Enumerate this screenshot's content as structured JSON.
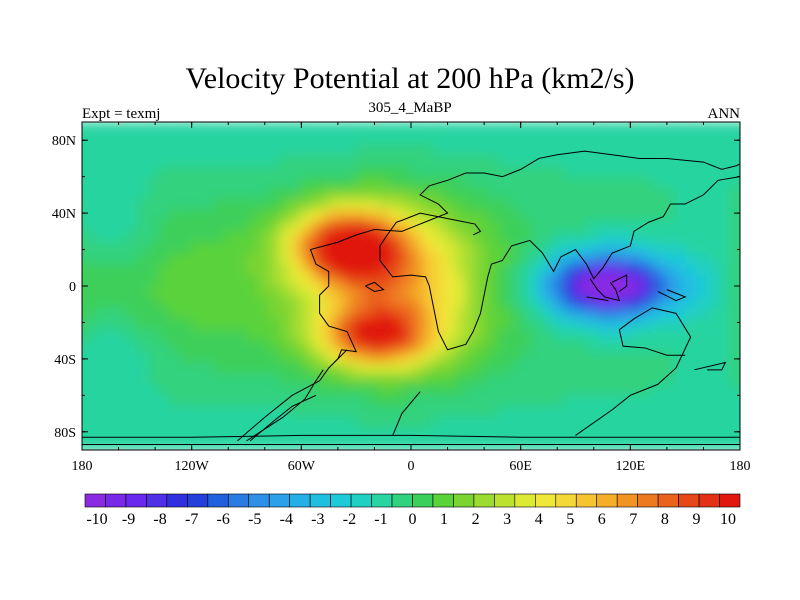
{
  "chart_data": {
    "type": "heatmap",
    "title": "Velocity Potential at 200 hPa (km2/s)",
    "subtitle": "305_4_MaBP",
    "left_string": "Expt = texmj",
    "right_string": "ANN",
    "xlabel": "",
    "ylabel": "",
    "xlim": [
      -180,
      180
    ],
    "ylim": [
      -90,
      90
    ],
    "x_ticks": [
      {
        "value": -180,
        "label": "180"
      },
      {
        "value": -120,
        "label": "120W"
      },
      {
        "value": -60,
        "label": "60W"
      },
      {
        "value": 0,
        "label": "0"
      },
      {
        "value": 60,
        "label": "60E"
      },
      {
        "value": 120,
        "label": "120E"
      },
      {
        "value": 180,
        "label": "180"
      }
    ],
    "y_ticks": [
      {
        "value": 80,
        "label": "80N"
      },
      {
        "value": 40,
        "label": "40N"
      },
      {
        "value": 0,
        "label": "0"
      },
      {
        "value": -40,
        "label": "40S"
      },
      {
        "value": -80,
        "label": "80S"
      }
    ],
    "colorbar": {
      "levels": [
        -10,
        -9,
        -8,
        -7,
        -6,
        -5,
        -4,
        -3,
        -2,
        -1,
        0,
        1,
        2,
        3,
        4,
        5,
        6,
        7,
        8,
        9,
        10
      ],
      "label_values": [
        "-10",
        "-9",
        "-8",
        "-7",
        "-6",
        "-5",
        "-4",
        "-3",
        "-2",
        "-1",
        "0",
        "1",
        "2",
        "3",
        "4",
        "5",
        "6",
        "7",
        "8",
        "9",
        "10"
      ],
      "colors": [
        "#8a2be2",
        "#7a28e8",
        "#6a28ee",
        "#5030e6",
        "#3030e0",
        "#2540d8",
        "#2060dc",
        "#2a7be2",
        "#3090e8",
        "#2ca0e8",
        "#24b0e6",
        "#20bfe0",
        "#1ccad8",
        "#20d0c0",
        "#28d4a0",
        "#30d27e",
        "#3ccf5a",
        "#5ad23a",
        "#7ad432",
        "#9cdc30",
        "#bce230",
        "#dcea34",
        "#f0e838",
        "#f4d838",
        "#f6c430",
        "#f4ae2a",
        "#f29424",
        "#ee7a20",
        "#ea621c",
        "#e64818",
        "#e43014",
        "#e01810"
      ]
    },
    "features": [
      {
        "name": "maximum over Africa/Atlantic",
        "lon": -35,
        "lat": 22,
        "value": 9.5
      },
      {
        "name": "secondary maximum",
        "lon": -20,
        "lat": -28,
        "value": 8.0
      },
      {
        "name": "minimum over Indian Ocean/Maritime Continent",
        "lon": 105,
        "lat": 0,
        "value": -9.5
      }
    ],
    "coastlines": [
      [
        [
          -180,
          -83
        ],
        [
          -120,
          -83
        ],
        [
          -60,
          -82
        ],
        [
          0,
          -82
        ],
        [
          60,
          -83
        ],
        [
          120,
          -83
        ],
        [
          180,
          -83
        ]
      ],
      [
        [
          -180,
          -87
        ],
        [
          180,
          -87
        ]
      ],
      [
        [
          -95,
          -85
        ],
        [
          -80,
          -72
        ],
        [
          -65,
          -60
        ],
        [
          -50,
          -52
        ],
        [
          -45,
          -45
        ],
        [
          -40,
          -40
        ],
        [
          -38,
          -35
        ],
        [
          -30,
          -36
        ],
        [
          -35,
          -25
        ],
        [
          -45,
          -22
        ],
        [
          -50,
          -15
        ],
        [
          -50,
          -5
        ],
        [
          -45,
          0
        ],
        [
          -45,
          8
        ],
        [
          -52,
          12
        ],
        [
          -55,
          20
        ],
        [
          -40,
          24
        ],
        [
          -30,
          28
        ],
        [
          -20,
          31
        ],
        [
          -5,
          30
        ],
        [
          0,
          32
        ],
        [
          10,
          36
        ],
        [
          20,
          40
        ],
        [
          15,
          45
        ],
        [
          5,
          50
        ],
        [
          10,
          55
        ],
        [
          20,
          58
        ],
        [
          30,
          62
        ],
        [
          40,
          62
        ],
        [
          50,
          60
        ],
        [
          60,
          64
        ],
        [
          70,
          70
        ],
        [
          80,
          72
        ],
        [
          95,
          74
        ],
        [
          110,
          72
        ],
        [
          125,
          70
        ],
        [
          140,
          70
        ],
        [
          160,
          68
        ],
        [
          170,
          64
        ],
        [
          178,
          66
        ],
        [
          180,
          67
        ]
      ],
      [
        [
          180,
          60
        ],
        [
          168,
          58
        ],
        [
          160,
          50
        ],
        [
          150,
          45
        ],
        [
          142,
          45
        ],
        [
          138,
          38
        ],
        [
          130,
          35
        ],
        [
          122,
          30
        ],
        [
          120,
          22
        ],
        [
          110,
          18
        ],
        [
          105,
          10
        ],
        [
          100,
          4
        ],
        [
          96,
          12
        ],
        [
          90,
          20
        ],
        [
          82,
          16
        ],
        [
          78,
          8
        ],
        [
          72,
          18
        ],
        [
          65,
          25
        ],
        [
          55,
          22
        ],
        [
          50,
          14
        ],
        [
          44,
          12
        ],
        [
          42,
          5
        ],
        [
          40,
          -5
        ],
        [
          38,
          -15
        ],
        [
          34,
          -25
        ],
        [
          30,
          -32
        ],
        [
          20,
          -35
        ],
        [
          15,
          -25
        ],
        [
          12,
          -10
        ],
        [
          10,
          0
        ],
        [
          8,
          5
        ],
        [
          0,
          6
        ],
        [
          -10,
          5
        ],
        [
          -17,
          14
        ],
        [
          -17,
          22
        ],
        [
          -13,
          28
        ],
        [
          -8,
          35
        ],
        [
          -5,
          36
        ],
        [
          0,
          38
        ],
        [
          5,
          40
        ],
        [
          15,
          38
        ],
        [
          25,
          36
        ],
        [
          35,
          34
        ],
        [
          38,
          30
        ],
        [
          34,
          28
        ]
      ],
      [
        [
          -90,
          -85
        ],
        [
          -70,
          -72
        ],
        [
          -58,
          -62
        ],
        [
          -52,
          -52
        ],
        [
          -48,
          -46
        ]
      ],
      [
        [
          -88,
          -85
        ],
        [
          -75,
          -74
        ],
        [
          -65,
          -66
        ],
        [
          -52,
          -60
        ]
      ],
      [
        [
          90,
          -82
        ],
        [
          110,
          -68
        ],
        [
          120,
          -60
        ],
        [
          135,
          -54
        ],
        [
          145,
          -45
        ],
        [
          153,
          -28
        ],
        [
          145,
          -15
        ],
        [
          132,
          -12
        ],
        [
          122,
          -18
        ],
        [
          114,
          -24
        ],
        [
          116,
          -33
        ],
        [
          128,
          -34
        ],
        [
          140,
          -38
        ],
        [
          150,
          -38
        ]
      ],
      [
        [
          -10,
          -82
        ],
        [
          -5,
          -70
        ],
        [
          5,
          -58
        ]
      ],
      [
        [
          -35,
          -35
        ],
        [
          -42,
          -42
        ],
        [
          -38,
          -38
        ]
      ],
      [
        [
          -25,
          0
        ],
        [
          -20,
          -3
        ],
        [
          -15,
          -2
        ],
        [
          -20,
          2
        ],
        [
          -25,
          0
        ]
      ],
      [
        [
          98,
          4
        ],
        [
          102,
          -2
        ],
        [
          106,
          -6
        ],
        [
          114,
          -8
        ],
        [
          112,
          -2
        ],
        [
          109,
          2
        ]
      ],
      [
        [
          110,
          2
        ],
        [
          118,
          6
        ],
        [
          118,
          0
        ],
        [
          114,
          -3
        ]
      ],
      [
        [
          96,
          -6
        ],
        [
          108,
          -8
        ]
      ],
      [
        [
          140,
          -2
        ],
        [
          150,
          -6
        ],
        [
          145,
          -8
        ],
        [
          135,
          -3
        ]
      ],
      [
        [
          155,
          -46
        ],
        [
          172,
          -42
        ],
        [
          170,
          -46
        ],
        [
          162,
          -46
        ]
      ]
    ]
  }
}
